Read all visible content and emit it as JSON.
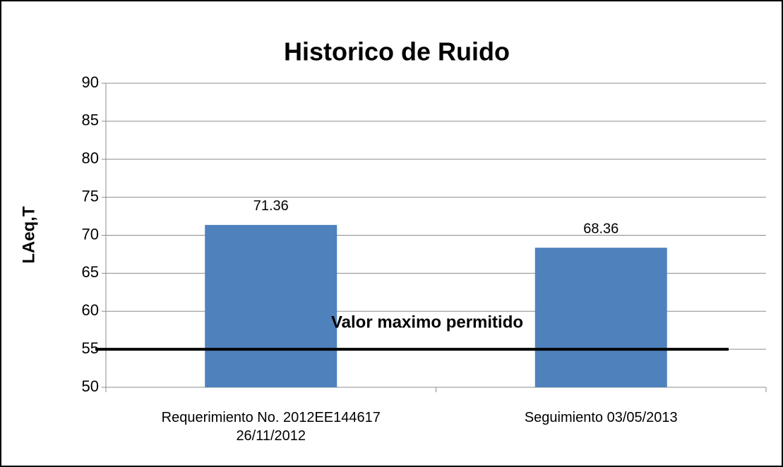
{
  "chart_data": {
    "type": "bar",
    "title": "Historico de Ruido",
    "y_label": "LAeq,T",
    "categories": [
      "Requerimiento No. 2012EE144617 26/11/2012",
      "Seguimiento 03/05/2013"
    ],
    "values": [
      71.36,
      68.36
    ],
    "color": "#4f81bd",
    "ylim": [
      50,
      90
    ],
    "yticks": [
      50,
      55,
      60,
      65,
      70,
      75,
      80,
      85,
      90
    ],
    "grid": true,
    "threshold": 55,
    "threshold_label": "Valor maximo permitido"
  }
}
